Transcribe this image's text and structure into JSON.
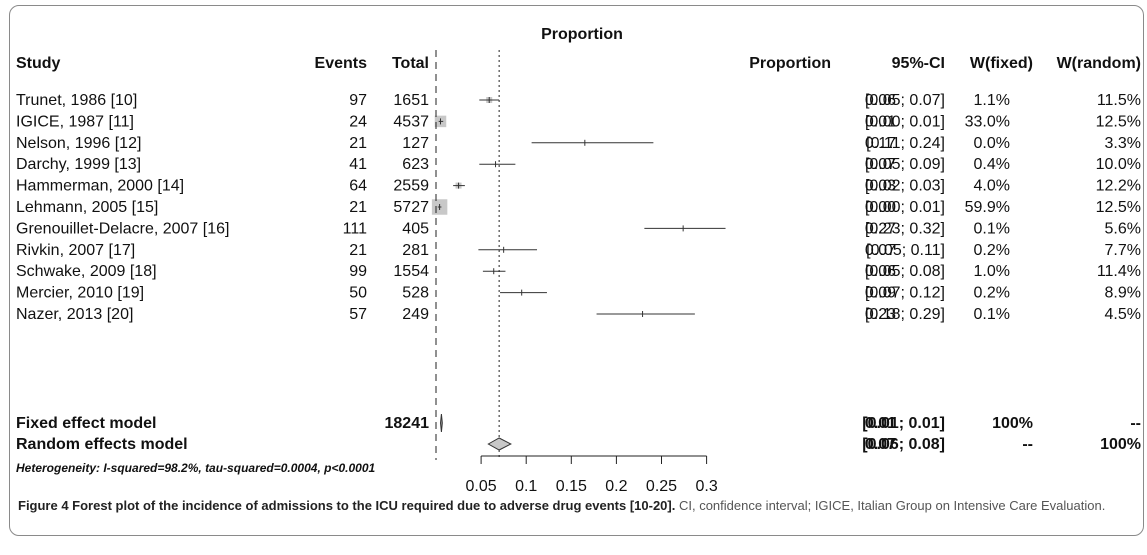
{
  "chart_data": {
    "type": "forest",
    "title": "Proportion",
    "columns": {
      "study": "Study",
      "events": "Events",
      "total": "Total",
      "proportion": "Proportion",
      "ci": "95%-CI",
      "w_fixed": "W(fixed)",
      "w_random": "W(random)"
    },
    "studies": [
      {
        "study": "Trunet, 1986 [10]",
        "events": "97",
        "total": "1651",
        "prop": "0.06",
        "ci": "[0.05; 0.07]",
        "wf": "1.1%",
        "wr": "11.5%",
        "p": 0.059,
        "lo": 0.048,
        "hi": 0.07,
        "box": 0.011
      },
      {
        "study": "IGICE, 1987 [11]",
        "events": "24",
        "total": "4537",
        "prop": "0.01",
        "ci": "[0.00; 0.01]",
        "wf": "33.0%",
        "wr": "12.5%",
        "p": 0.005,
        "lo": 0.003,
        "hi": 0.008,
        "box": 0.33
      },
      {
        "study": "Nelson, 1996 [12]",
        "events": "21",
        "total": "127",
        "prop": "0.17",
        "ci": "[0.11; 0.24]",
        "wf": "0.0%",
        "wr": "3.3%",
        "p": 0.165,
        "lo": 0.106,
        "hi": 0.241,
        "box": 0.0
      },
      {
        "study": "Darchy, 1999 [13]",
        "events": "41",
        "total": "623",
        "prop": "0.07",
        "ci": "[0.05; 0.09]",
        "wf": "0.4%",
        "wr": "10.0%",
        "p": 0.066,
        "lo": 0.048,
        "hi": 0.088,
        "box": 0.004
      },
      {
        "study": "Hammerman, 2000 [14]",
        "events": "64",
        "total": "2559",
        "prop": "0.03",
        "ci": "[0.02; 0.03]",
        "wf": "4.0%",
        "wr": "12.2%",
        "p": 0.025,
        "lo": 0.019,
        "hi": 0.032,
        "box": 0.04
      },
      {
        "study": "Lehmann, 2005 [15]",
        "events": "21",
        "total": "5727",
        "prop": "0.00",
        "ci": "[0.00; 0.01]",
        "wf": "59.9%",
        "wr": "12.5%",
        "p": 0.004,
        "lo": 0.002,
        "hi": 0.006,
        "box": 0.599
      },
      {
        "study": "Grenouillet-Delacre, 2007 [16]",
        "events": "111",
        "total": "405",
        "prop": "0.27",
        "ci": "[0.23; 0.32]",
        "wf": "0.1%",
        "wr": "5.6%",
        "p": 0.274,
        "lo": 0.231,
        "hi": 0.321,
        "box": 0.001
      },
      {
        "study": "Rivkin, 2007 [17]",
        "events": "21",
        "total": "281",
        "prop": "0.07",
        "ci": "[0.05; 0.11]",
        "wf": "0.2%",
        "wr": "7.7%",
        "p": 0.075,
        "lo": 0.047,
        "hi": 0.112,
        "box": 0.002
      },
      {
        "study": "Schwake, 2009 [18]",
        "events": "99",
        "total": "1554",
        "prop": "0.06",
        "ci": "[0.05; 0.08]",
        "wf": "1.0%",
        "wr": "11.4%",
        "p": 0.064,
        "lo": 0.052,
        "hi": 0.077,
        "box": 0.01
      },
      {
        "study": "Mercier, 2010 [19]",
        "events": "50",
        "total": "528",
        "prop": "0.09",
        "ci": "[0.07; 0.12]",
        "wf": "0.2%",
        "wr": "8.9%",
        "p": 0.095,
        "lo": 0.071,
        "hi": 0.123,
        "box": 0.002
      },
      {
        "study": "Nazer, 2013 [20]",
        "events": "57",
        "total": "249",
        "prop": "0.23",
        "ci": "[0.18; 0.29]",
        "wf": "0.1%",
        "wr": "4.5%",
        "p": 0.229,
        "lo": 0.178,
        "hi": 0.287,
        "box": 0.001
      }
    ],
    "fixed": {
      "label": "Fixed effect model",
      "total": "18241",
      "prop": "0.01",
      "ci": "[0.01; 0.01]",
      "wf": "100%",
      "wr": "--",
      "p": 0.006,
      "lo": 0.005,
      "hi": 0.007
    },
    "random": {
      "label": "Random effects model",
      "prop": "0.07",
      "ci": "[0.06; 0.08]",
      "wf": "--",
      "wr": "100%",
      "p": 0.07,
      "lo": 0.058,
      "hi": 0.083
    },
    "heterogeneity": "Heterogeneity: I-squared=98.2%, tau-squared=0.0004, p<0.0001",
    "x_ticks": [
      0.05,
      0.1,
      0.15,
      0.2,
      0.25,
      0.3
    ],
    "x_tick_labels": [
      "0.05",
      "0.1",
      "0.15",
      "0.2",
      "0.25",
      "0.3"
    ],
    "xlim": [
      0,
      0.3
    ],
    "reference_lines": [
      0,
      0.07
    ],
    "grid": false
  },
  "caption": {
    "label": "Figure 4 Forest plot of the incidence of admissions to the ICU required due to adverse drug events [10-20].",
    "text": " CI, confidence interval; IGICE, Italian Group on Intensive Care Evaluation."
  }
}
